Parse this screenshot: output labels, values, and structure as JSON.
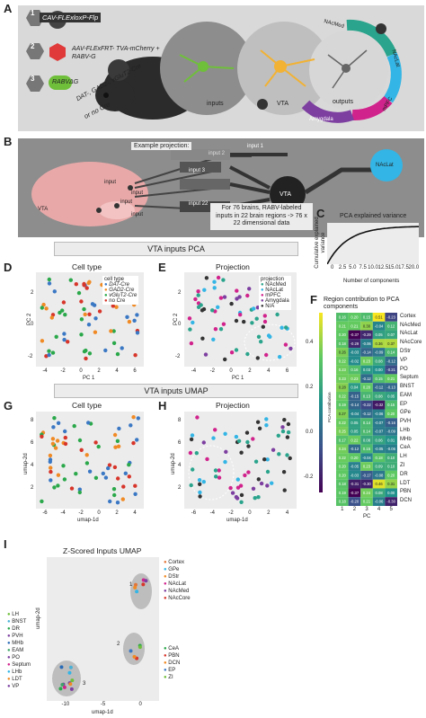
{
  "panel_a": {
    "letter": "A",
    "step1_label": "CAV-FLExloxP-Flp",
    "step2_label": "AAV-FLExFRT- TVA-mCherry + RABV-G",
    "step3_label": "RABVΔG",
    "mouse_lines": "DAT-, GAD2-, vGluT2-Cre",
    "no_cre": "or no Cre",
    "inputs": "inputs",
    "vta": "VTA",
    "outputs": "outputs",
    "nacmed": "NAcMed",
    "naclat": "NAcLat",
    "amygdala": "Amygdala",
    "mpfc": "mPFC",
    "num1": "1",
    "num2": "2",
    "num3": "3"
  },
  "panel_b": {
    "letter": "B",
    "example": "Example projection:",
    "input1": "input 1",
    "input2": "input 2",
    "input3": "input 3",
    "input22": "input 22",
    "vta": "VTA",
    "naclat": "NAcLat",
    "brain_vta": "VTA",
    "brain_inputs": [
      "input",
      "input",
      "input",
      "input"
    ],
    "summary": "For 76 brains, RABV-labeled inputs in 22 brain regions -> 76 x 22 dimensional data"
  },
  "panel_c": {
    "letter": "C",
    "title": "PCA explained variance",
    "ylabel": "Cumulative explained variance",
    "xlabel": "Number of components",
    "xticks": [
      "0",
      "2.5",
      "5.0",
      "7.5",
      "10.0",
      "12.5",
      "15.0",
      "17.5",
      "20.0"
    ]
  },
  "section_pca": "VTA inputs PCA",
  "section_umap": "VTA inputs UMAP",
  "panel_d": {
    "letter": "D",
    "title": "Cell type",
    "xlabel": "PC 1",
    "ylabel": "PC 2",
    "legend_title": "cell type",
    "legend": [
      "DAT-Cre",
      "GAD2-Cre",
      "vGluT2-Cre",
      "no Cre"
    ],
    "xticks": [
      "-4",
      "-2",
      "0",
      "2",
      "4",
      "6"
    ],
    "yticks": [
      "2",
      "0",
      "-2"
    ]
  },
  "panel_e": {
    "letter": "E",
    "title": "Projection",
    "xlabel": "PC 1",
    "ylabel": "PC 2",
    "legend_title": "projection",
    "legend": [
      "NAcMed",
      "NAcLat",
      "mPFC",
      "Amygdala",
      "N/A"
    ],
    "xticks": [
      "-4",
      "-2",
      "0",
      "2",
      "4",
      "6"
    ],
    "yticks": [
      "2",
      "0",
      "-2"
    ]
  },
  "panel_f": {
    "letter": "F",
    "title": "Region contribution to PCA components",
    "regions": [
      "Cortex",
      "NAcMed",
      "NAcLat",
      "NAcCore",
      "DStr",
      "VP",
      "PO",
      "Septum",
      "BNST",
      "EAM",
      "EP",
      "GPe",
      "PVH",
      "LHb",
      "MHb",
      "CeA",
      "LH",
      "ZI",
      "DR",
      "LDT",
      "PBN",
      "DCN"
    ],
    "cbar_label": "PCA contribution",
    "cbar_ticks": [
      "0.4",
      "0.2",
      "0.0",
      "-0.2"
    ],
    "xlabel": "PC",
    "xticks": [
      "1",
      "2",
      "3",
      "4",
      "5"
    ],
    "values": [
      [
        0.16,
        0.2,
        0.15,
        0.51,
        -0.23
      ],
      [
        0.21,
        0.21,
        0.3,
        -0.04,
        0.12
      ],
      [
        0.2,
        -0.37,
        -0.29,
        0.05,
        0.07
      ],
      [
        0.18,
        -0.29,
        -0.06,
        0.36,
        0.37
      ],
      [
        0.26,
        -0.03,
        -0.14,
        -0.09,
        0.14
      ],
      [
        0.22,
        -0.02,
        0.23,
        0.08,
        -0.12
      ],
      [
        0.23,
        0.16,
        0.03,
        0.0,
        -0.21
      ],
      [
        0.23,
        0.23,
        -0.12,
        0.15,
        0.21
      ],
      [
        0.28,
        0.04,
        0.2,
        -0.12,
        -0.13
      ],
      [
        0.22,
        -0.15,
        0.13,
        0.08,
        0.05
      ],
      [
        0.19,
        -0.14,
        -0.22,
        -0.32,
        0.15
      ],
      [
        0.27,
        -0.04,
        -0.12,
        -0.06,
        0.2
      ],
      [
        0.22,
        0.05,
        0.14,
        -0.07,
        -0.16
      ],
      [
        0.25,
        0.05,
        0.14,
        -0.07,
        -0.09
      ],
      [
        0.17,
        0.22,
        0.08,
        0.06,
        0.01
      ],
      [
        0.24,
        -0.12,
        0.15,
        -0.05,
        -0.06
      ],
      [
        0.22,
        0.2,
        -0.04,
        0.18,
        0.1
      ],
      [
        0.2,
        -0.05,
        0.23,
        0.09,
        0.1
      ],
      [
        0.2,
        -0.03,
        -0.17,
        -0.08,
        0.2
      ],
      [
        0.18,
        -0.31,
        -0.3,
        0.46,
        0.31
      ],
      [
        0.19,
        -0.37,
        0.24,
        0.08,
        0.0
      ],
      [
        0.18,
        -0.2,
        0.21,
        -0.06,
        -0.3
      ]
    ]
  },
  "panel_g": {
    "letter": "G",
    "title": "Cell type",
    "xlabel": "umap-1d",
    "ylabel": "umap-2d",
    "xticks": [
      "-6",
      "-4",
      "-2",
      "0",
      "2",
      "4"
    ],
    "yticks": [
      "8",
      "6",
      "4",
      "2"
    ]
  },
  "panel_h": {
    "letter": "H",
    "title": "Projection",
    "xlabel": "umap-1d",
    "ylabel": "umap-2d",
    "xticks": [
      "-6",
      "-4",
      "-2",
      "0",
      "2",
      "4"
    ],
    "yticks": [
      "8",
      "6",
      "4",
      "2"
    ]
  },
  "panel_i": {
    "letter": "I",
    "title": "Z-Scored Inputs UMAP",
    "xlabel": "umap-1d",
    "ylabel": "umap-2d",
    "xticks": [
      "-10",
      "-5",
      "0"
    ],
    "yticks": [
      "10",
      "5",
      "0",
      "-5"
    ],
    "left_legend": [
      "LH",
      "BNST",
      "DR",
      "PVH",
      "MHb",
      "EAM",
      "PO",
      "Septum",
      "LHb",
      "LDT",
      "VP"
    ],
    "right_legend_1": [
      "Cortex",
      "GPe",
      "DStr",
      "NAcLat",
      "NAcMed",
      "NAcCore"
    ],
    "right_legend_2": [
      "CeA",
      "PBN",
      "DCN",
      "EP",
      "ZI"
    ],
    "cluster_labels": [
      "1",
      "2",
      "3"
    ]
  },
  "colors": {
    "dat": "#3b78c4",
    "gad2": "#f08a24",
    "vglut2": "#2aa84a",
    "nocre": "#d7352a",
    "nacmed": "#2aa48c",
    "naclat": "#33b5e5",
    "mpfc": "#d1238c",
    "amygdala": "#7d3fa0",
    "na": "#333333"
  }
}
